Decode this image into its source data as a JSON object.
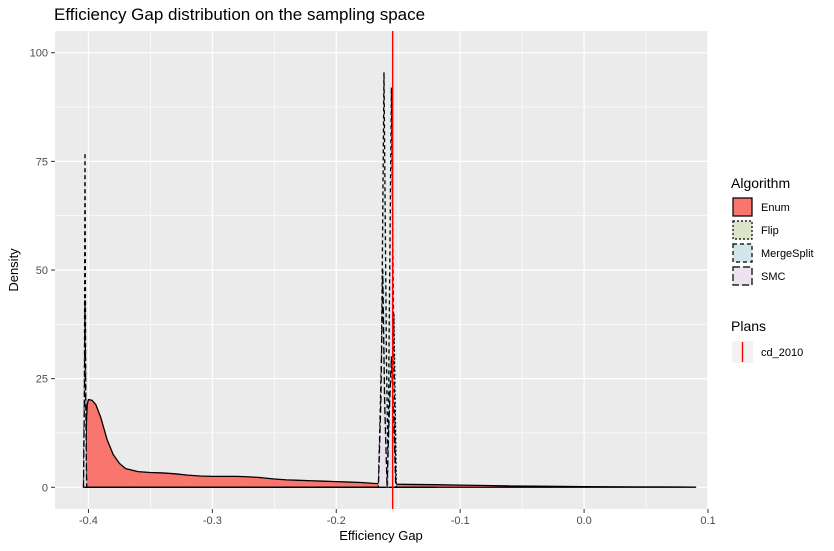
{
  "chart_data": {
    "type": "area",
    "title": "Efficiency Gap distribution on the sampling space",
    "xlabel": "Efficiency Gap",
    "ylabel": "Density",
    "xlim": [
      -0.427,
      0.1
    ],
    "ylim": [
      -5,
      105
    ],
    "x_ticks": [
      -0.4,
      -0.3,
      -0.2,
      -0.1,
      0.0,
      0.1
    ],
    "x_tick_labels": [
      "-0.4",
      "-0.3",
      "-0.2",
      "-0.1",
      "0.0",
      "0.1"
    ],
    "y_ticks": [
      0,
      25,
      50,
      75,
      100
    ],
    "y_tick_labels": [
      "0",
      "25",
      "50",
      "75",
      "100"
    ],
    "grid": true,
    "legend_position": "right",
    "legend": {
      "algorithm_title": "Algorithm",
      "plans_title": "Plans"
    },
    "series": [
      {
        "name": "Enum",
        "fill": "#F8766D",
        "line": "solid",
        "points": [
          [
            -0.4025,
            0
          ],
          [
            -0.402,
            10
          ],
          [
            -0.4015,
            16
          ],
          [
            -0.401,
            19
          ],
          [
            -0.4,
            20.2
          ],
          [
            -0.397,
            20
          ],
          [
            -0.394,
            19
          ],
          [
            -0.39,
            16
          ],
          [
            -0.385,
            11
          ],
          [
            -0.38,
            7.5
          ],
          [
            -0.375,
            5.5
          ],
          [
            -0.37,
            4.3
          ],
          [
            -0.36,
            3.6
          ],
          [
            -0.35,
            3.4
          ],
          [
            -0.34,
            3.3
          ],
          [
            -0.33,
            3.1
          ],
          [
            -0.32,
            2.8
          ],
          [
            -0.31,
            2.6
          ],
          [
            -0.3,
            2.5
          ],
          [
            -0.29,
            2.5
          ],
          [
            -0.28,
            2.5
          ],
          [
            -0.27,
            2.4
          ],
          [
            -0.26,
            2.2
          ],
          [
            -0.25,
            1.9
          ],
          [
            -0.24,
            1.7
          ],
          [
            -0.23,
            1.6
          ],
          [
            -0.22,
            1.5
          ],
          [
            -0.21,
            1.4
          ],
          [
            -0.2,
            1.3
          ],
          [
            -0.19,
            1.2
          ],
          [
            -0.18,
            1.1
          ],
          [
            -0.17,
            0.9
          ],
          [
            -0.16,
            0.8
          ],
          [
            -0.15,
            0.7
          ],
          [
            -0.14,
            0.65
          ],
          [
            -0.12,
            0.6
          ],
          [
            -0.1,
            0.5
          ],
          [
            -0.08,
            0.4
          ],
          [
            -0.06,
            0.3
          ],
          [
            -0.04,
            0.25
          ],
          [
            -0.02,
            0.2
          ],
          [
            0.0,
            0.15
          ],
          [
            0.02,
            0.12
          ],
          [
            0.04,
            0.1
          ],
          [
            0.06,
            0.08
          ],
          [
            0.08,
            0.05
          ],
          [
            0.09,
            0.03
          ],
          [
            0.09,
            0
          ]
        ]
      },
      {
        "name": "Flip",
        "fill": "#DCE5C9",
        "line": "dotted",
        "points": [
          [
            -0.157,
            0
          ],
          [
            -0.1555,
            0
          ],
          [
            -0.1545,
            20
          ],
          [
            -0.1535,
            40
          ],
          [
            -0.1525,
            20
          ],
          [
            -0.1515,
            0
          ],
          [
            -0.15,
            0
          ]
        ]
      },
      {
        "name": "MergeSplit",
        "fill": "#D1E6EA",
        "line": "dashed",
        "points": [
          [
            -0.404,
            0
          ],
          [
            -0.4033,
            20
          ],
          [
            -0.4028,
            77
          ],
          [
            -0.4022,
            20
          ],
          [
            -0.4015,
            0
          ],
          [
            -0.17,
            0
          ],
          [
            -0.166,
            0
          ],
          [
            -0.1635,
            30
          ],
          [
            -0.1615,
            95.5
          ],
          [
            -0.1595,
            30
          ],
          [
            -0.158,
            0
          ],
          [
            -0.1575,
            30
          ],
          [
            -0.1555,
            92
          ],
          [
            -0.1535,
            30
          ],
          [
            -0.152,
            0
          ],
          [
            -0.12,
            0
          ]
        ]
      },
      {
        "name": "SMC",
        "fill": "#EDE2EF",
        "line": "longdash",
        "points": [
          [
            -0.404,
            0
          ],
          [
            -0.4033,
            20
          ],
          [
            -0.4028,
            43
          ],
          [
            -0.4022,
            20
          ],
          [
            -0.4015,
            0
          ],
          [
            -0.17,
            0
          ],
          [
            -0.166,
            0
          ],
          [
            -0.164,
            20
          ],
          [
            -0.1625,
            50
          ],
          [
            -0.161,
            20
          ],
          [
            -0.159,
            0
          ],
          [
            -0.1575,
            15
          ],
          [
            -0.1555,
            30
          ],
          [
            -0.1535,
            15
          ],
          [
            -0.152,
            0
          ],
          [
            -0.12,
            0
          ]
        ]
      }
    ],
    "vline": {
      "name": "cd_2010",
      "x": -0.1545,
      "color": "#FF0000"
    }
  }
}
